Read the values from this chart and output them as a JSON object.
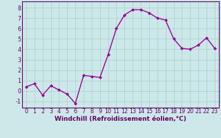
{
  "x": [
    0,
    1,
    2,
    3,
    4,
    5,
    6,
    7,
    8,
    9,
    10,
    11,
    12,
    13,
    14,
    15,
    16,
    17,
    18,
    19,
    20,
    21,
    22,
    23
  ],
  "y": [
    0.4,
    0.7,
    -0.4,
    0.5,
    0.1,
    -0.3,
    -1.2,
    1.5,
    1.4,
    1.3,
    3.5,
    6.0,
    7.3,
    7.8,
    7.8,
    7.5,
    7.0,
    6.8,
    5.0,
    4.1,
    4.0,
    4.4,
    5.1,
    4.1
  ],
  "line_color": "#990099",
  "marker": "D",
  "marker_size": 2.0,
  "linewidth": 1.0,
  "xlabel": "Windchill (Refroidissement éolien,°C)",
  "xlabel_fontsize": 6.5,
  "ylabel_ticks": [
    -1,
    0,
    1,
    2,
    3,
    4,
    5,
    6,
    7,
    8
  ],
  "xticks": [
    0,
    1,
    2,
    3,
    4,
    5,
    6,
    7,
    8,
    9,
    10,
    11,
    12,
    13,
    14,
    15,
    16,
    17,
    18,
    19,
    20,
    21,
    22,
    23
  ],
  "ylim": [
    -1.6,
    8.6
  ],
  "xlim": [
    -0.5,
    23.5
  ],
  "bg_color": "#cce8e8",
  "grid_color": "#aacccc",
  "tick_fontsize": 5.8,
  "spine_color": "#660066"
}
